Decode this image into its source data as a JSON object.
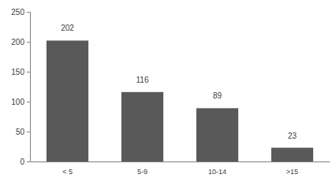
{
  "chart_data": {
    "type": "bar",
    "categories": [
      "< 5",
      "5-9",
      "10-14",
      ">15"
    ],
    "values": [
      202,
      116,
      89,
      23
    ],
    "color": "#595959",
    "ylim": [
      0,
      250
    ],
    "yticks": [
      0,
      50,
      100,
      150,
      200,
      250
    ],
    "grid": false,
    "data_labels": true
  }
}
